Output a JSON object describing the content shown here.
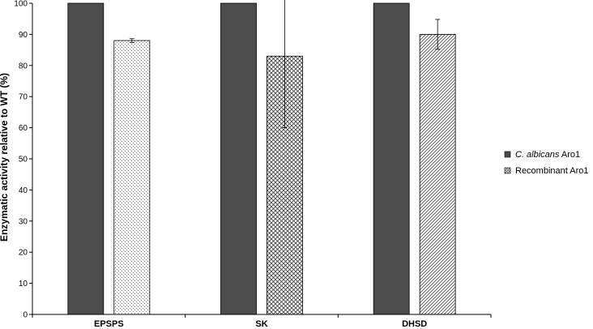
{
  "chart_data": {
    "type": "bar",
    "ylabel": "Enzymatic activity relative to WT (%)",
    "xlabel": "",
    "ylim": [
      0,
      100
    ],
    "yticks": [
      0,
      10,
      20,
      30,
      40,
      50,
      60,
      70,
      80,
      90,
      100
    ],
    "categories": [
      "EPSPS",
      "SK",
      "DHSD"
    ],
    "series": [
      {
        "name_italic": "C. albicans",
        "name_rest": " Aro1",
        "color": "#4d4d4d",
        "pattern": "solid",
        "values": [
          100,
          100,
          100
        ],
        "errors": [
          0,
          0,
          0
        ]
      },
      {
        "name_italic": "",
        "name_rest": "Recombinant Aro1",
        "color": "#ffffff",
        "pattern": "dotted",
        "pattern_by_category": [
          "dotted",
          "crosshatch",
          "diagonal"
        ],
        "values": [
          88,
          83,
          90
        ],
        "errors": [
          0.6,
          23,
          4.8
        ]
      }
    ],
    "legend_position": "right",
    "grid": false
  }
}
